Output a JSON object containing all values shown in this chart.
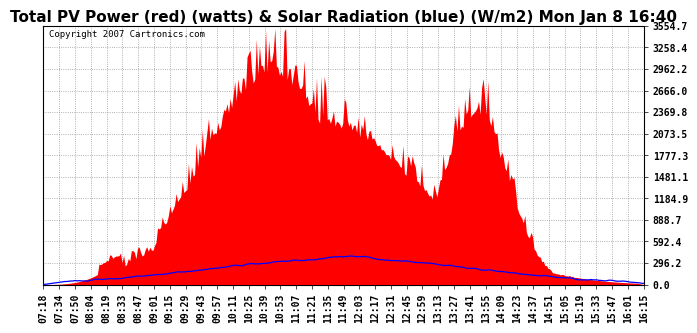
{
  "title": "Total PV Power (red) (watts) & Solar Radiation (blue) (W/m2) Mon Jan 8 16:40",
  "copyright_text": "Copyright 2007 Cartronics.com",
  "bg_color": "#ffffff",
  "plot_bg_color": "#ffffff",
  "grid_color": "#aaaaaa",
  "red_color": "#ff0000",
  "blue_color": "#0000ff",
  "ymin": 0.0,
  "ymax": 3554.7,
  "yticks": [
    0.0,
    296.2,
    592.4,
    888.7,
    1184.9,
    1481.1,
    1777.3,
    2073.5,
    2369.8,
    2666.0,
    2962.2,
    3258.4,
    3554.7
  ],
  "xtick_labels": [
    "07:18",
    "07:34",
    "07:50",
    "08:04",
    "08:19",
    "08:33",
    "08:47",
    "09:01",
    "09:15",
    "09:29",
    "09:43",
    "09:57",
    "10:11",
    "10:25",
    "10:39",
    "10:53",
    "11:07",
    "11:21",
    "11:35",
    "11:49",
    "12:03",
    "12:17",
    "12:31",
    "12:45",
    "12:59",
    "13:13",
    "13:27",
    "13:41",
    "13:55",
    "14:09",
    "14:23",
    "14:37",
    "14:51",
    "15:05",
    "15:19",
    "15:33",
    "15:47",
    "16:01",
    "16:15"
  ],
  "n_xticks": 39,
  "title_fontsize": 11,
  "tick_fontsize": 7,
  "copyright_fontsize": 6.5
}
